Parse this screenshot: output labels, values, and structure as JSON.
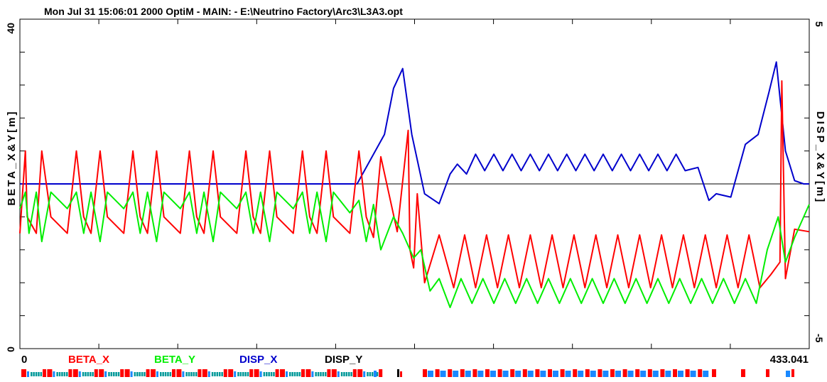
{
  "header": "Mon Jul 31 15:06:01 2000    OptiM - MAIN: - E:\\Neutrino Factory\\Arc3\\L3A3.opt",
  "chart_data": {
    "type": "line",
    "xlim": [
      0,
      433.041
    ],
    "x_tick_labels": [
      "0",
      "433.041"
    ],
    "left_axis": {
      "label": "BETA_X&Y[m]",
      "ylim": [
        0,
        40
      ],
      "tick_labels": [
        "0",
        "40"
      ]
    },
    "right_axis": {
      "label": "DISP_X&Y[m]",
      "ylim": [
        -5,
        5
      ],
      "tick_labels": [
        "-5",
        "5"
      ]
    },
    "legend": [
      "BETA_X",
      "BETA_Y",
      "DISP_X",
      "DISP_Y"
    ],
    "colors": {
      "BETA_X": "#ff0000",
      "BETA_Y": "#00ee00",
      "DISP_X": "#0000cc",
      "DISP_Y": "#000000"
    },
    "grid": false,
    "series": [
      {
        "name": "BETA_X",
        "axis": "left",
        "x": [
          0,
          3,
          4,
          9,
          12,
          17,
          26,
          31,
          35,
          39,
          44,
          48,
          57,
          62,
          66,
          70,
          75,
          79,
          88,
          93,
          97,
          101,
          106,
          110,
          119,
          124,
          128,
          132,
          137,
          141,
          150,
          155,
          159,
          163,
          168,
          172,
          181,
          186,
          190,
          194,
          198,
          207,
          213,
          214,
          216,
          218,
          222,
          230,
          238,
          244,
          250,
          256,
          262,
          268,
          274,
          280,
          286,
          292,
          298,
          304,
          310,
          316,
          322,
          328,
          334,
          340,
          346,
          352,
          358,
          364,
          370,
          376,
          382,
          388,
          394,
          400,
          406,
          412,
          417,
          418,
          420,
          425,
          433
        ],
        "y": [
          14,
          24,
          16,
          14,
          24,
          16,
          14,
          24,
          16,
          14,
          24,
          16,
          14,
          24,
          16,
          14,
          24,
          16,
          14,
          24,
          16,
          14,
          24,
          16,
          14,
          24,
          16,
          14,
          24,
          16,
          14,
          24,
          16,
          14,
          24,
          16,
          14,
          24,
          16,
          13.5,
          23.3,
          14.2,
          26.5,
          12,
          9.8,
          18.8,
          8,
          13.8,
          7.4,
          13.8,
          7.4,
          13.8,
          7.4,
          13.8,
          7.4,
          13.8,
          7.4,
          13.8,
          7.4,
          13.8,
          7.4,
          13.8,
          7.4,
          13.8,
          7.4,
          13.8,
          7.4,
          13.8,
          7.4,
          13.8,
          7.4,
          13.8,
          7.4,
          13.8,
          7.4,
          13.8,
          7.4,
          9,
          10.5,
          32.5,
          8.5,
          14.5,
          14.2
        ]
      },
      {
        "name": "BETA_Y",
        "axis": "left",
        "x": [
          0,
          3,
          5,
          9,
          12,
          17,
          26,
          31,
          35,
          39,
          44,
          48,
          57,
          62,
          66,
          70,
          75,
          79,
          88,
          93,
          97,
          101,
          106,
          110,
          119,
          124,
          128,
          132,
          137,
          141,
          150,
          155,
          159,
          163,
          168,
          172,
          181,
          186,
          190,
          194,
          198,
          205,
          210,
          216,
          220,
          225,
          230,
          236,
          242,
          248,
          254,
          260,
          266,
          272,
          278,
          284,
          290,
          296,
          302,
          308,
          314,
          320,
          326,
          332,
          338,
          344,
          350,
          356,
          362,
          368,
          374,
          380,
          386,
          392,
          398,
          404,
          410,
          416,
          420,
          425,
          433
        ],
        "y": [
          17,
          19,
          14,
          19,
          13,
          19,
          17,
          19,
          14,
          19,
          13,
          19,
          17,
          19,
          14,
          19,
          13,
          19,
          17,
          19,
          14,
          19,
          13,
          19,
          17,
          19,
          14,
          19,
          13,
          19,
          17,
          19,
          14,
          19,
          13,
          19,
          16.5,
          18,
          13,
          17.5,
          12,
          16,
          14,
          11,
          12,
          7,
          8.5,
          5,
          8.5,
          5.5,
          8.5,
          5.5,
          8.5,
          5.5,
          8.5,
          5.5,
          8.5,
          5.5,
          8.5,
          5.5,
          8.5,
          5.5,
          8.5,
          5.5,
          8.5,
          5.5,
          8.5,
          5.5,
          8.5,
          5.5,
          8.5,
          5.5,
          8.5,
          5.5,
          8.5,
          5.5,
          12,
          16,
          10.5,
          13.5,
          17.5
        ]
      },
      {
        "name": "DISP_X",
        "axis": "right",
        "x": [
          0,
          185,
          200,
          205,
          210,
          215,
          222,
          230,
          236,
          240,
          245,
          250,
          255,
          260,
          265,
          270,
          275,
          280,
          285,
          290,
          295,
          300,
          305,
          310,
          315,
          320,
          325,
          330,
          335,
          340,
          345,
          350,
          355,
          360,
          365,
          372,
          378,
          382,
          390,
          398,
          405,
          411,
          415,
          420,
          425,
          430,
          433
        ],
        "y": [
          0,
          0,
          1.5,
          2.9,
          3.5,
          1.5,
          -0.3,
          -0.6,
          0.3,
          0.6,
          0.3,
          0.9,
          0.4,
          0.9,
          0.4,
          0.9,
          0.4,
          0.9,
          0.4,
          0.9,
          0.4,
          0.9,
          0.4,
          0.9,
          0.4,
          0.9,
          0.4,
          0.9,
          0.4,
          0.9,
          0.4,
          0.9,
          0.4,
          0.9,
          0.4,
          0.5,
          -0.5,
          -0.3,
          -0.4,
          1.2,
          1.5,
          2.8,
          3.7,
          1.0,
          0.1,
          0.0,
          0.0
        ]
      },
      {
        "name": "DISP_Y",
        "axis": "right",
        "x": [
          0,
          433.041
        ],
        "y": [
          0,
          0
        ]
      }
    ]
  },
  "lattice": {
    "colors": {
      "bend": "#ff0000",
      "quad": "#1a88ff",
      "sext": "#009999"
    }
  }
}
